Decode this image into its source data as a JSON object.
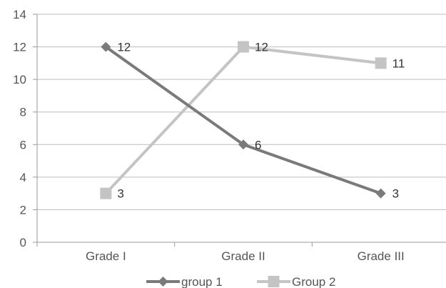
{
  "chart_data": {
    "type": "line",
    "categories": [
      "Grade I",
      "Grade II",
      "Grade III"
    ],
    "ylim": [
      0,
      14
    ],
    "yticks": [
      0,
      2,
      4,
      6,
      8,
      10,
      12,
      14
    ],
    "grid": true,
    "legend_position": "bottom",
    "series": [
      {
        "name": "group 1",
        "values": [
          12,
          6,
          3
        ],
        "color": "#7a7a7a",
        "marker": "diamond"
      },
      {
        "name": "Group 2",
        "values": [
          3,
          12,
          11
        ],
        "color": "#c4c4c4",
        "marker": "square"
      }
    ]
  }
}
